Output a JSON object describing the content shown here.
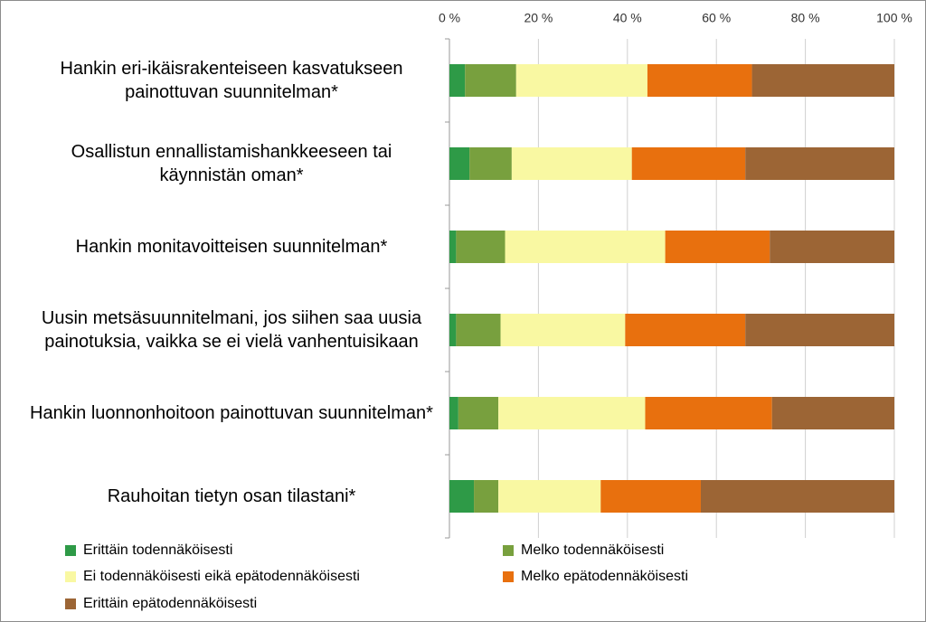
{
  "chart_data": {
    "type": "stacked-bar-horizontal",
    "categories": [
      "Hankin eri-ikäisrakenteiseen kasvatukseen painottuvan suunnitelman*",
      "Osallistun ennallistamishankkeeseen tai käynnistän oman*",
      "Hankin monitavoitteisen suunnitelman*",
      "Uusin metsäsuunnitelmani, jos siihen saa uusia painotuksia, vaikka se ei vielä vanhentuisikaan",
      "Hankin luonnonhoitoon painottuvan suunnitelman*",
      "Rauhoitan tietyn osan tilastani*"
    ],
    "series": [
      {
        "name": "Erittäin todennäköisesti",
        "color": "#2e9a47",
        "values": [
          3.5,
          4.5,
          1.5,
          1.5,
          2,
          5.5
        ]
      },
      {
        "name": "Melko todennäköisesti",
        "color": "#78a03e",
        "values": [
          11.5,
          9.5,
          11,
          10,
          9,
          5.5
        ]
      },
      {
        "name": "Ei todennäköisesti eikä epätodennäköisesti",
        "color": "#f9f8a2",
        "values": [
          29.5,
          27,
          36,
          28,
          33,
          23
        ]
      },
      {
        "name": "Melko epätodennäköisesti",
        "color": "#e8700e",
        "values": [
          23.5,
          25.5,
          23.5,
          27,
          28.5,
          22.5
        ]
      },
      {
        "name": "Erittäin epätodennäköisesti",
        "color": "#9c6535",
        "values": [
          32,
          33.5,
          28,
          33.5,
          27.5,
          43.5
        ]
      }
    ],
    "xlim": [
      0,
      100
    ],
    "xticks": [
      {
        "value": 0,
        "label": "0 %"
      },
      {
        "value": 20,
        "label": "20 %"
      },
      {
        "value": 40,
        "label": "40 %"
      },
      {
        "value": 60,
        "label": "60 %"
      },
      {
        "value": 80,
        "label": "80 %"
      },
      {
        "value": 100,
        "label": "100 %"
      }
    ],
    "grid": true,
    "legend": "bottom"
  }
}
